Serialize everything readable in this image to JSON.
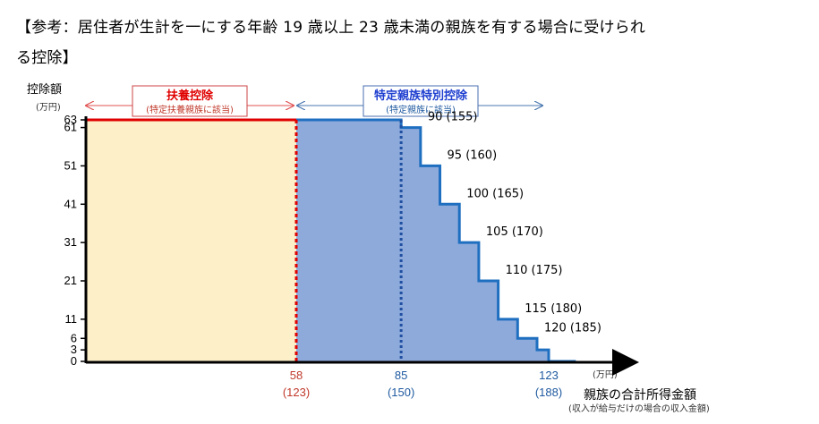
{
  "title_line1": "【参考：居住者が生計を一にする年齢 19 歳以上 23 歳未満の親族を有する場合に受けられ",
  "title_line2": "る控除】",
  "chart_data": {
    "type": "area",
    "ylabel": "控除額",
    "yunit": "(万円)",
    "xlabel": "親族の合計所得金額",
    "xlabel_sub": "(収入が給与だけの場合の収入金額)",
    "xunit": "(万円)",
    "yticks": [
      0,
      3,
      6,
      11,
      21,
      31,
      41,
      51,
      61,
      63
    ],
    "xticks": [
      {
        "value": 58,
        "label": "58",
        "sub": "(123)",
        "color": "#c0392b"
      },
      {
        "value": 85,
        "label": "85",
        "sub": "(150)",
        "color": "#1f5aa0"
      },
      {
        "value": 123,
        "label": "123",
        "sub": "(188)",
        "color": "#1f5aa0"
      }
    ],
    "region_fuyo": {
      "label": "扶養控除",
      "sub": "(特定扶養親族に該当)",
      "color": "#e00000",
      "fill": "#fdefc8"
    },
    "region_tokutei": {
      "label": "特定親族特別控除",
      "sub": "(特定親族に該当)",
      "color": "#1f3fd0",
      "fill": "#8eaadb"
    },
    "steps": [
      {
        "x_from": 58,
        "x_to": 85,
        "y": 63
      },
      {
        "x_from": 85,
        "x_to": 90,
        "y": 61
      },
      {
        "x_from": 90,
        "x_to": 95,
        "y": 51
      },
      {
        "x_from": 95,
        "x_to": 100,
        "y": 41
      },
      {
        "x_from": 100,
        "x_to": 105,
        "y": 31
      },
      {
        "x_from": 105,
        "x_to": 110,
        "y": 21
      },
      {
        "x_from": 110,
        "x_to": 115,
        "y": 11
      },
      {
        "x_from": 115,
        "x_to": 120,
        "y": 6
      },
      {
        "x_from": 120,
        "x_to": 123,
        "y": 3
      },
      {
        "x_from": 123,
        "x_to": 130,
        "y": 0
      }
    ],
    "step_labels": [
      {
        "x": 90,
        "y": 61,
        "text": "90 (155)"
      },
      {
        "x": 95,
        "y": 51,
        "text": "95 (160)"
      },
      {
        "x": 100,
        "y": 41,
        "text": "100 (165)"
      },
      {
        "x": 105,
        "y": 31,
        "text": "105 (170)"
      },
      {
        "x": 110,
        "y": 21,
        "text": "110 (175)"
      },
      {
        "x": 115,
        "y": 11,
        "text": "115 (180)"
      },
      {
        "x": 120,
        "y": 6,
        "text": "120 (185)"
      }
    ],
    "ylim": [
      0,
      63
    ]
  }
}
